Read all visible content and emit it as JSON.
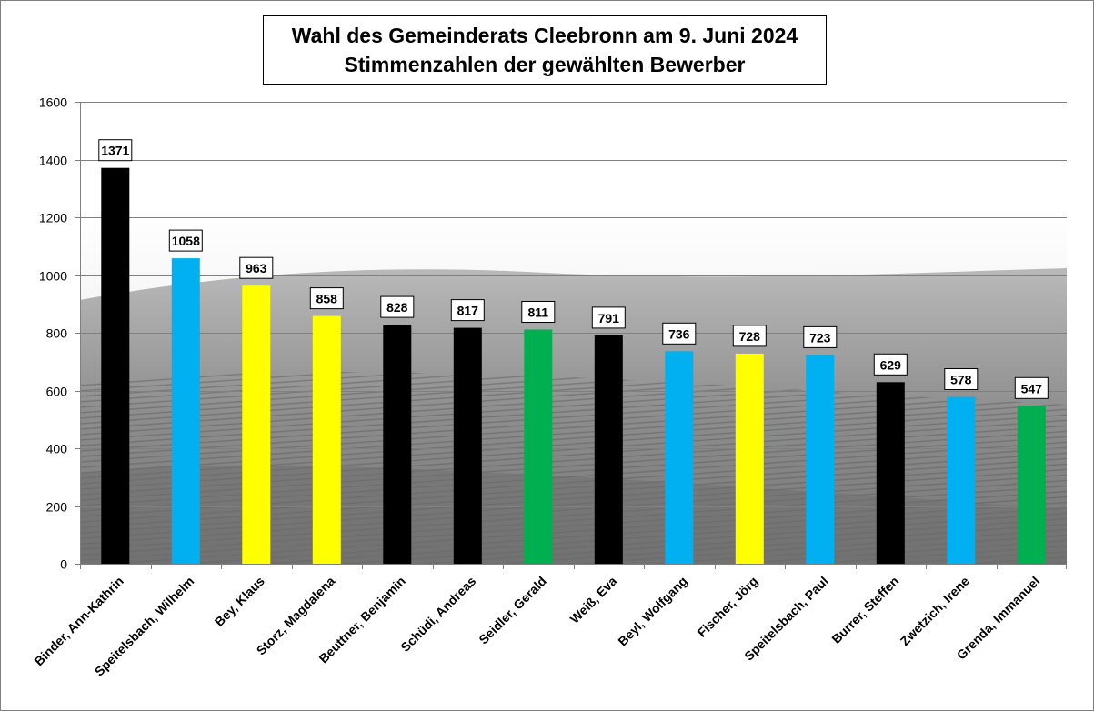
{
  "chart_data": {
    "type": "bar",
    "title": "Wahl des Gemeinderats Cleebronn am 9. Juni 2024",
    "subtitle": "Stimmenzahlen der gewählten Bewerber",
    "xlabel": "",
    "ylabel": "",
    "ylim": [
      0,
      1600
    ],
    "yticks": [
      0,
      200,
      400,
      600,
      800,
      1000,
      1200,
      1400,
      1600
    ],
    "grid": true,
    "legend": "none",
    "categories": [
      "Binder, Ann-Kathrin",
      "Speitelsbach, Wilhelm",
      "Bey, Klaus",
      "Storz, Magdalena",
      "Beuttner, Benjamin",
      "Schüdi, Andreas",
      "Seidler, Gerald",
      "Weiß, Eva",
      "Beyl, Wolfgang",
      "Fischer, Jörg",
      "Speitelsbach, Paul",
      "Burrer, Steffen",
      "Zwetzich, Irene",
      "Grenda, Immanuel"
    ],
    "values": [
      1371,
      1058,
      963,
      858,
      828,
      817,
      811,
      791,
      736,
      728,
      723,
      629,
      578,
      547
    ],
    "bar_colors": [
      "#000000",
      "#00b0f0",
      "#ffff00",
      "#ffff00",
      "#000000",
      "#000000",
      "#00b050",
      "#000000",
      "#00b0f0",
      "#ffff00",
      "#00b0f0",
      "#000000",
      "#00b0f0",
      "#00b050"
    ],
    "data_labels": [
      "1371",
      "1058",
      "963",
      "858",
      "828",
      "817",
      "811",
      "791",
      "736",
      "728",
      "723",
      "629",
      "578",
      "547"
    ]
  }
}
